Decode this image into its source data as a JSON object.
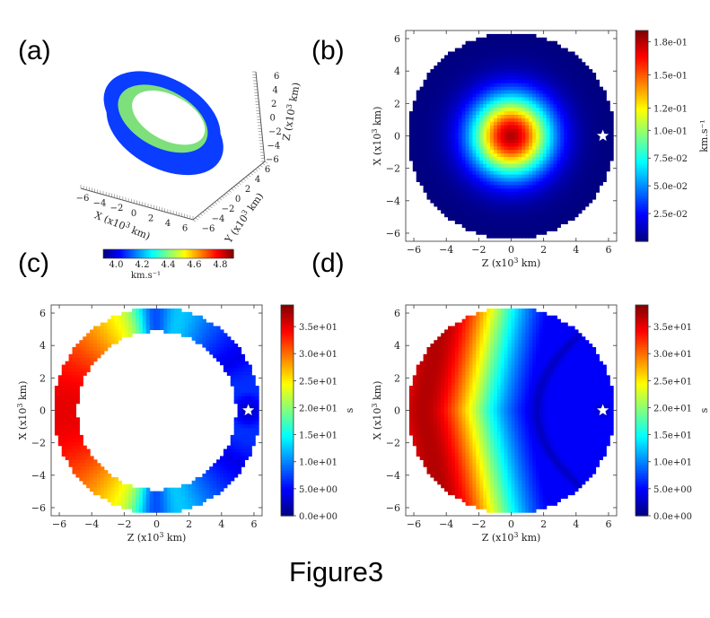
{
  "figure_caption": "Figure3",
  "panel_labels": [
    "(a)",
    "(b)",
    "(c)",
    "(d)"
  ],
  "colormap": "jet",
  "chart_data": [
    {
      "panel": "(a)",
      "type": "3d-torus",
      "xlabel": "X (x10^3 km)",
      "ylabel": "Y (x10^3 km)",
      "zlabel": "Z (x10^3 km)",
      "x_ticks": [
        "-6",
        "-4",
        "-2",
        "0",
        "2",
        "4",
        "6"
      ],
      "y_ticks": [
        "-6",
        "-4",
        "-2",
        "0",
        "2",
        "4",
        "6"
      ],
      "z_ticks": [
        "-6",
        "-4",
        "-2",
        "0",
        "2",
        "4",
        "6"
      ],
      "colorbar": {
        "label": "km.s⁻¹",
        "ticks": [
          "4.0",
          "4.2",
          "4.4",
          "4.6",
          "4.8"
        ],
        "range": [
          3.9,
          4.9
        ]
      },
      "colors": {
        "outer": "#0a3dff",
        "inner": "#7de07a"
      }
    },
    {
      "panel": "(b)",
      "type": "heatmap",
      "description_field": "radial gaussian peak at center",
      "xlabel": "Z (x10^3 km)",
      "ylabel": "X (x10^3 km)",
      "x_ticks": [
        "-6",
        "-4",
        "-2",
        "0",
        "2",
        "4",
        "6"
      ],
      "y_ticks": [
        "-6",
        "-4",
        "-2",
        "0",
        "2",
        "4",
        "6"
      ],
      "xlim": [
        -6.5,
        6.5
      ],
      "ylim": [
        6.5,
        -6.5
      ],
      "domain_radius": 6.35,
      "field": {
        "peak_center": [
          0,
          0
        ],
        "peak_value": 0.18,
        "min_value": 0.0
      },
      "source_star": {
        "z": 5.65,
        "x": 0
      },
      "colorbar": {
        "label": "km.s⁻¹",
        "ticks": [
          "1.8e-01",
          "1.5e-01",
          "1.2e-01",
          "1.0e-01",
          "7.5e-02",
          "5.0e-02",
          "2.5e-02"
        ],
        "range": [
          0.0,
          0.19
        ]
      }
    },
    {
      "panel": "(c)",
      "type": "heatmap",
      "description_field": "travel time in spherical shell",
      "xlabel": "Z (x10^3 km)",
      "ylabel": "X (x10^3 km)",
      "x_ticks": [
        "-6",
        "-4",
        "-2",
        "0",
        "2",
        "4",
        "6"
      ],
      "y_ticks": [
        "-6",
        "-4",
        "-2",
        "0",
        "2",
        "4",
        "6"
      ],
      "xlim": [
        -6.5,
        6.5
      ],
      "ylim": [
        6.5,
        -6.5
      ],
      "domain_radius": 6.35,
      "inner_radius": 4.9,
      "source_star": {
        "z": 5.65,
        "x": 0
      },
      "colorbar": {
        "label": "s",
        "ticks": [
          "3.5e+01",
          "3.0e+01",
          "2.5e+01",
          "2.0e+01",
          "1.5e+01",
          "1.0e+01",
          "5.0e+00",
          "0.0e+00"
        ],
        "range": [
          0,
          39
        ]
      }
    },
    {
      "panel": "(d)",
      "type": "heatmap",
      "description_field": "travel time in full disk",
      "xlabel": "Z (x10^3 km)",
      "ylabel": "X (x10^3 km)",
      "x_ticks": [
        "-6",
        "-4",
        "-2",
        "0",
        "2",
        "4",
        "6"
      ],
      "y_ticks": [
        "-6",
        "-4",
        "-2",
        "0",
        "2",
        "4",
        "6"
      ],
      "xlim": [
        -6.5,
        6.5
      ],
      "ylim": [
        6.5,
        -6.5
      ],
      "domain_radius": 6.35,
      "source_star": {
        "z": 5.65,
        "x": 0
      },
      "colorbar": {
        "label": "s",
        "ticks": [
          "3.5e+01",
          "3.0e+01",
          "2.5e+01",
          "2.0e+01",
          "1.5e+01",
          "1.0e+01",
          "5.0e+00",
          "0.0e+00"
        ],
        "range": [
          0,
          39
        ]
      }
    }
  ]
}
